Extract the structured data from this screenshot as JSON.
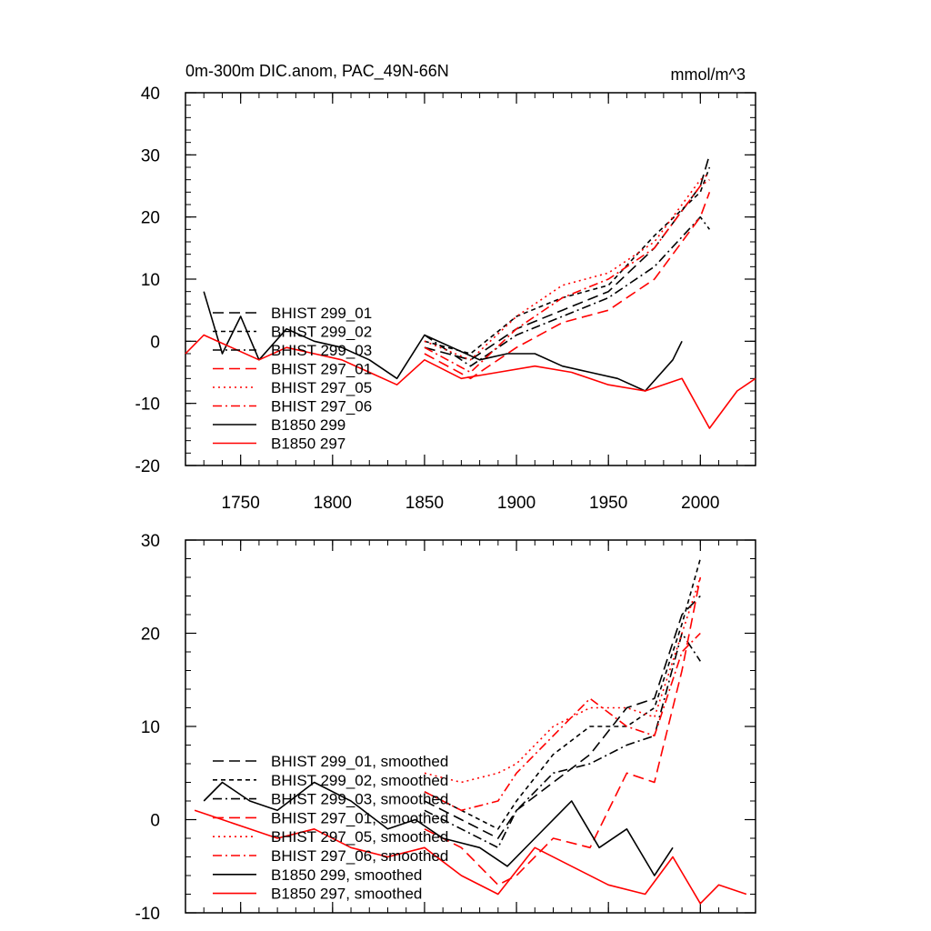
{
  "colors": {
    "black": "#000000",
    "red": "#ff0000"
  },
  "chart_data": [
    {
      "type": "line",
      "title": "0m-300m DIC.anom, PAC_49N-66N",
      "units": "mmol/m^3",
      "xlim": [
        1720,
        2030
      ],
      "ylim": [
        -20,
        40
      ],
      "x_ticks": [
        1750,
        1800,
        1850,
        1900,
        1950,
        2000
      ],
      "x_tick_labels": [
        "1750",
        "1800",
        "1850",
        "1900",
        "1950",
        "2000"
      ],
      "y_ticks": [
        -20,
        -10,
        0,
        10,
        20,
        30,
        40
      ],
      "y_tick_labels": [
        "-20",
        "-10",
        "0",
        "10",
        "20",
        "30",
        "40"
      ],
      "legend_position": "left",
      "series": [
        {
          "name": "BHIST 299_01",
          "color": "#000000",
          "dash": "long-dash",
          "x": [
            1850,
            1875,
            1900,
            1925,
            1950,
            1975,
            2000,
            2005
          ],
          "values": [
            -1,
            -3,
            2,
            5,
            8,
            15,
            25,
            30
          ]
        },
        {
          "name": "BHIST 299_02",
          "color": "#000000",
          "dash": "short-dash",
          "x": [
            1850,
            1875,
            1900,
            1925,
            1950,
            1975,
            2000,
            2005
          ],
          "values": [
            0,
            -2,
            4,
            7,
            9,
            17,
            24,
            28
          ]
        },
        {
          "name": "BHIST 299_03",
          "color": "#000000",
          "dash": "dash-dot",
          "x": [
            1850,
            1875,
            1900,
            1925,
            1950,
            1975,
            2000,
            2005
          ],
          "values": [
            1,
            -4,
            1,
            4,
            7,
            12,
            20,
            18
          ]
        },
        {
          "name": "BHIST 297_01",
          "color": "#ff0000",
          "dash": "long-dash",
          "x": [
            1850,
            1875,
            1900,
            1925,
            1950,
            1975,
            2000,
            2005
          ],
          "values": [
            -2,
            -6,
            -1,
            3,
            5,
            10,
            20,
            24
          ]
        },
        {
          "name": "BHIST 297_05",
          "color": "#ff0000",
          "dash": "dotted",
          "x": [
            1850,
            1875,
            1900,
            1925,
            1950,
            1975,
            2000,
            2005
          ],
          "values": [
            0,
            -3,
            4,
            9,
            11,
            16,
            26,
            27
          ]
        },
        {
          "name": "BHIST 297_06",
          "color": "#ff0000",
          "dash": "dash-dot",
          "x": [
            1850,
            1875,
            1900,
            1925,
            1950,
            1975,
            2000,
            2005
          ],
          "values": [
            -1,
            -5,
            2,
            7,
            10,
            15,
            25,
            26
          ]
        },
        {
          "name": "B1850 299",
          "color": "#000000",
          "dash": "solid",
          "x": [
            1730,
            1740,
            1750,
            1760,
            1775,
            1790,
            1805,
            1820,
            1835,
            1850,
            1865,
            1880,
            1895,
            1910,
            1925,
            1940,
            1955,
            1970,
            1985,
            1990
          ],
          "values": [
            8,
            -2,
            4,
            -3,
            2,
            0,
            -1,
            -3,
            -6,
            1,
            -1,
            -3,
            -2,
            -2,
            -4,
            -5,
            -6,
            -8,
            -3,
            0
          ]
        },
        {
          "name": "B1850 297",
          "color": "#ff0000",
          "dash": "solid",
          "x": [
            1720,
            1730,
            1745,
            1760,
            1775,
            1790,
            1805,
            1820,
            1835,
            1850,
            1870,
            1890,
            1910,
            1930,
            1950,
            1970,
            1990,
            2005,
            2020,
            2030
          ],
          "values": [
            -2,
            1,
            -1,
            -3,
            -1,
            -2,
            -3,
            -5,
            -7,
            -3,
            -6,
            -5,
            -4,
            -5,
            -7,
            -8,
            -6,
            -14,
            -8,
            -6
          ]
        }
      ]
    },
    {
      "type": "line",
      "title": "",
      "xlim": [
        1720,
        2030
      ],
      "ylim": [
        -10,
        30
      ],
      "y_ticks": [
        -10,
        0,
        10,
        20,
        30
      ],
      "y_tick_labels": [
        "-10",
        "0",
        "10",
        "20",
        "30"
      ],
      "legend_position": "left",
      "series": [
        {
          "name": "BHIST 299_01, smoothed",
          "color": "#000000",
          "dash": "long-dash",
          "x": [
            1850,
            1870,
            1890,
            1900,
            1920,
            1940,
            1960,
            1975,
            1990,
            2000
          ],
          "values": [
            2,
            0,
            -2,
            1,
            4,
            7,
            12,
            13,
            22,
            24
          ]
        },
        {
          "name": "BHIST 299_02, smoothed",
          "color": "#000000",
          "dash": "short-dash",
          "x": [
            1850,
            1870,
            1890,
            1900,
            1920,
            1940,
            1960,
            1975,
            1990,
            2000
          ],
          "values": [
            3,
            1,
            -1,
            2,
            7,
            10,
            10,
            12,
            21,
            28
          ]
        },
        {
          "name": "BHIST 299_03, smoothed",
          "color": "#000000",
          "dash": "dash-dot",
          "x": [
            1850,
            1870,
            1890,
            1900,
            1920,
            1940,
            1960,
            1975,
            1990,
            2000
          ],
          "values": [
            1,
            -1,
            -3,
            1,
            5,
            6,
            8,
            9,
            20,
            17
          ]
        },
        {
          "name": "BHIST 297_01, smoothed",
          "color": "#ff0000",
          "dash": "long-dash",
          "x": [
            1850,
            1870,
            1890,
            1900,
            1920,
            1940,
            1960,
            1975,
            1990,
            2000
          ],
          "values": [
            -1,
            -3,
            -7,
            -6,
            -2,
            -3,
            5,
            4,
            16,
            26
          ]
        },
        {
          "name": "BHIST 297_05, smoothed",
          "color": "#ff0000",
          "dash": "dotted",
          "x": [
            1850,
            1870,
            1890,
            1900,
            1920,
            1940,
            1960,
            1975,
            1990,
            2000
          ],
          "values": [
            5,
            4,
            5,
            6,
            10,
            12,
            12,
            11,
            20,
            26
          ]
        },
        {
          "name": "BHIST 297_06, smoothed",
          "color": "#ff0000",
          "dash": "dash-dot",
          "x": [
            1850,
            1870,
            1890,
            1900,
            1920,
            1940,
            1960,
            1975,
            1990,
            2000
          ],
          "values": [
            3,
            1,
            2,
            5,
            9,
            13,
            10,
            9,
            18,
            20
          ]
        },
        {
          "name": "B1850 299, smoothed",
          "color": "#000000",
          "dash": "solid",
          "x": [
            1730,
            1740,
            1755,
            1770,
            1790,
            1810,
            1830,
            1845,
            1860,
            1880,
            1895,
            1910,
            1930,
            1945,
            1960,
            1975,
            1985
          ],
          "values": [
            2,
            4,
            2,
            1,
            4,
            2,
            -1,
            0,
            -2,
            -3,
            -5,
            -2,
            2,
            -3,
            -1,
            -6,
            -3
          ]
        },
        {
          "name": "B1850 297, smoothed",
          "color": "#ff0000",
          "dash": "solid",
          "x": [
            1725,
            1740,
            1755,
            1770,
            1790,
            1810,
            1830,
            1850,
            1870,
            1890,
            1910,
            1930,
            1950,
            1970,
            1985,
            2000,
            2010,
            2025
          ],
          "values": [
            1,
            0,
            -1,
            -2,
            -1,
            -3,
            -4,
            -3,
            -6,
            -8,
            -3,
            -5,
            -7,
            -8,
            -4,
            -9,
            -7,
            -8
          ]
        }
      ]
    }
  ]
}
